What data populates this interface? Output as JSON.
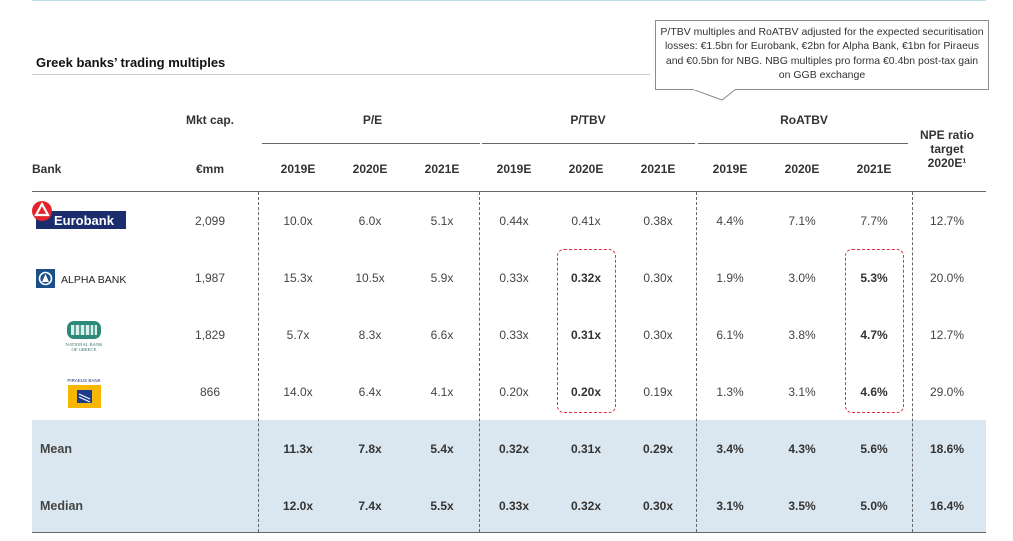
{
  "title": "Greek banks’ trading multiples",
  "callout": "P/TBV multiples and RoATBV adjusted for the expected securitisation losses: €1.5bn for Eurobank, €2bn for Alpha Bank, €1bn for Piraeus and €0.5bn for NBG. NBG multiples pro forma €0.4bn post-tax gain on GGB exchange",
  "headers": {
    "bank": "Bank",
    "mktcap_top": "Mkt cap.",
    "mktcap_unit": "€mm",
    "pe": "P/E",
    "ptbv": "P/TBV",
    "roatbv": "RoATBV",
    "npe": "NPE ratio target 2020E¹",
    "years": [
      "2019E",
      "2020E",
      "2021E",
      "2019E",
      "2020E",
      "2021E",
      "2019E",
      "2020E",
      "2021E"
    ]
  },
  "logos": {
    "eurobank": "Eurobank",
    "alpha": "ALPHA BANK",
    "nbg_line1": "NATIONAL BANK",
    "nbg_line2": "OF GREECE",
    "piraeus": "PIRAEUS BANK"
  },
  "rows": [
    {
      "mktcap": "2,099",
      "vals": [
        "10.0x",
        "6.0x",
        "5.1x",
        "0.44x",
        "0.41x",
        "0.38x",
        "4.4%",
        "7.1%",
        "7.7%"
      ],
      "npe": "12.7%"
    },
    {
      "mktcap": "1,987",
      "vals": [
        "15.3x",
        "10.5x",
        "5.9x",
        "0.33x",
        "0.32x",
        "0.30x",
        "1.9%",
        "3.0%",
        "5.3%"
      ],
      "npe": "20.0%"
    },
    {
      "mktcap": "1,829",
      "vals": [
        "5.7x",
        "8.3x",
        "6.6x",
        "0.33x",
        "0.31x",
        "0.30x",
        "6.1%",
        "3.8%",
        "4.7%"
      ],
      "npe": "12.7%"
    },
    {
      "mktcap": "866",
      "vals": [
        "14.0x",
        "6.4x",
        "4.1x",
        "0.20x",
        "0.20x",
        "0.19x",
        "1.3%",
        "3.1%",
        "4.6%"
      ],
      "npe": "29.0%"
    }
  ],
  "summary": [
    {
      "label": "Mean",
      "vals": [
        "11.3x",
        "7.8x",
        "5.4x",
        "0.32x",
        "0.31x",
        "0.29x",
        "3.4%",
        "4.3%",
        "5.6%"
      ],
      "npe": "18.6%"
    },
    {
      "label": "Median",
      "vals": [
        "12.0x",
        "7.4x",
        "5.5x",
        "0.33x",
        "0.32x",
        "0.30x",
        "3.1%",
        "3.5%",
        "5.0%"
      ],
      "npe": "16.4%"
    }
  ],
  "colors": {
    "eurobank_red": "#e2232a",
    "eurobank_navy": "#1c2d6e",
    "alpha_blue": "#1a4f88",
    "piraeus_yellow": "#f5b700",
    "highlight_red": "#e0303a",
    "summary_bg": "#dbe7f0"
  }
}
